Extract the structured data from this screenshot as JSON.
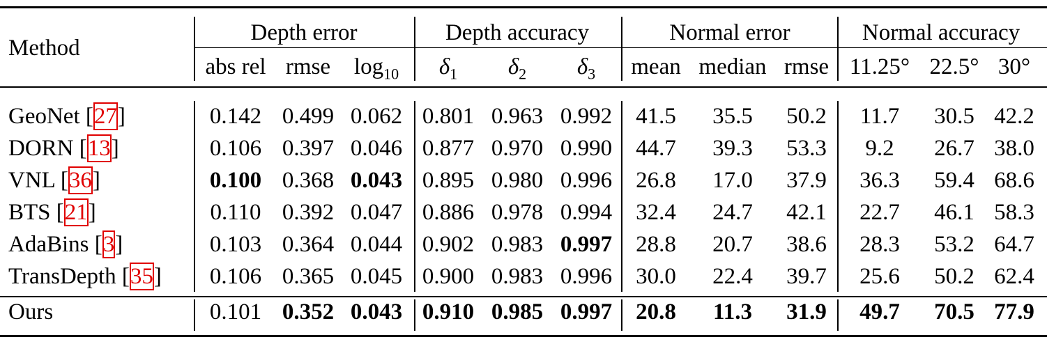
{
  "groups": [
    "Depth error",
    "Depth accuracy",
    "Normal error",
    "Normal accuracy"
  ],
  "method_header": "Method",
  "subheaders": {
    "abs_rel": "abs rel",
    "rmse": "rmse",
    "log_base": "log",
    "log_sub": "10",
    "delta_sym": "δ",
    "d1": "1",
    "d2": "2",
    "d3": "3",
    "mean": "mean",
    "median": "median",
    "nrmse": "rmse",
    "a1": "11.25°",
    "a2": "22.5°",
    "a3": "30°"
  },
  "rows": [
    {
      "name": "GeoNet [",
      "ref": "27",
      "close": "]",
      "values": [
        "0.142",
        "0.499",
        "0.062",
        "0.801",
        "0.963",
        "0.992",
        "41.5",
        "35.5",
        "50.2",
        "11.7",
        "30.5",
        "42.2"
      ],
      "bold": []
    },
    {
      "name": "DORN [",
      "ref": "13",
      "close": "]",
      "values": [
        "0.106",
        "0.397",
        "0.046",
        "0.877",
        "0.970",
        "0.990",
        "44.7",
        "39.3",
        "53.3",
        "9.2",
        "26.7",
        "38.0"
      ],
      "bold": []
    },
    {
      "name": "VNL [",
      "ref": "36",
      "close": "]",
      "values": [
        "0.100",
        "0.368",
        "0.043",
        "0.895",
        "0.980",
        "0.996",
        "26.8",
        "17.0",
        "37.9",
        "36.3",
        "59.4",
        "68.6"
      ],
      "bold": [
        0,
        2
      ]
    },
    {
      "name": "BTS [",
      "ref": "21",
      "close": "]",
      "values": [
        "0.110",
        "0.392",
        "0.047",
        "0.886",
        "0.978",
        "0.994",
        "32.4",
        "24.7",
        "42.1",
        "22.7",
        "46.1",
        "58.3"
      ],
      "bold": []
    },
    {
      "name": "AdaBins [",
      "ref": "3",
      "close": "]",
      "values": [
        "0.103",
        "0.364",
        "0.044",
        "0.902",
        "0.983",
        "0.997",
        "28.8",
        "20.7",
        "38.6",
        "28.3",
        "53.2",
        "64.7"
      ],
      "bold": [
        5
      ]
    },
    {
      "name": "TransDepth [",
      "ref": "35",
      "close": "]",
      "values": [
        "0.106",
        "0.365",
        "0.045",
        "0.900",
        "0.983",
        "0.996",
        "30.0",
        "22.4",
        "39.7",
        "25.6",
        "50.2",
        "62.4"
      ],
      "bold": []
    },
    {
      "name": "Ours",
      "ref": "",
      "close": "",
      "values": [
        "0.101",
        "0.352",
        "0.043",
        "0.910",
        "0.985",
        "0.997",
        "20.8",
        "11.3",
        "31.9",
        "49.7",
        "70.5",
        "77.9"
      ],
      "bold": [
        1,
        2,
        3,
        4,
        5,
        6,
        7,
        8,
        9,
        10,
        11
      ]
    }
  ]
}
